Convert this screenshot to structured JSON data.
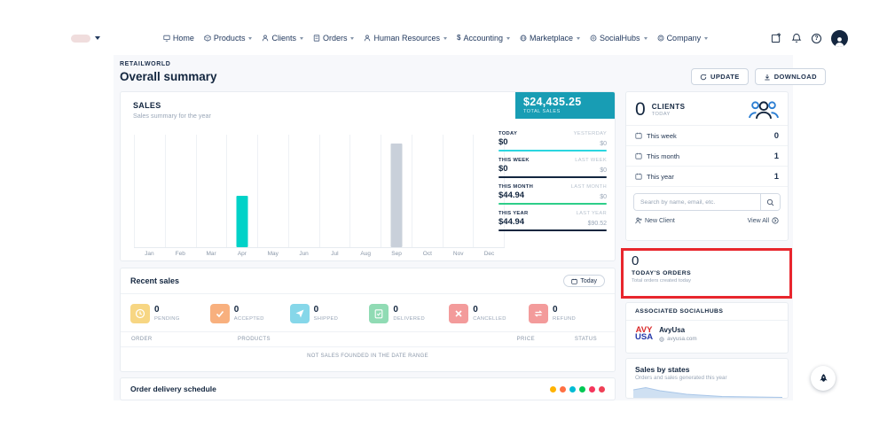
{
  "topbar": {
    "nav": [
      {
        "label": "Home"
      },
      {
        "label": "Products"
      },
      {
        "label": "Clients"
      },
      {
        "label": "Orders"
      },
      {
        "label": "Human Resources"
      },
      {
        "label": "Accounting",
        "icon_glyph": "$"
      },
      {
        "label": "Marketplace"
      },
      {
        "label": "SocialHubs"
      },
      {
        "label": "Company"
      }
    ],
    "icons": {
      "help_glyph": "?"
    }
  },
  "header": {
    "breadcrumb": "RETAILWORLD",
    "title": "Overall summary",
    "update_label": "UPDATE",
    "download_label": "DOWNLOAD"
  },
  "sales": {
    "title": "SALES",
    "subtitle": "Sales summary for the year",
    "badge": {
      "amount": "$24,435.25",
      "label": "TOTAL SALES"
    },
    "stats": [
      {
        "label": "TODAY",
        "value": "$0",
        "compare_label": "YESTERDAY",
        "compare_value": "$0",
        "accent": "#2bd6e0"
      },
      {
        "label": "THIS WEEK",
        "value": "$0",
        "compare_label": "LAST WEEK",
        "compare_value": "$0",
        "accent": "#13263f"
      },
      {
        "label": "THIS MONTH",
        "value": "$44.94",
        "compare_label": "LAST MONTH",
        "compare_value": "$0",
        "accent": "#2dce89"
      },
      {
        "label": "THIS YEAR",
        "value": "$44.94",
        "compare_label": "LAST YEAR",
        "compare_value": "$90.52",
        "accent": "#13263f"
      }
    ],
    "chart": {
      "type": "bar",
      "categories": [
        "Jan",
        "Feb",
        "Mar",
        "Apr",
        "May",
        "Jun",
        "Jul",
        "Aug",
        "Sep",
        "Oct",
        "Nov",
        "Dec"
      ],
      "values": [
        0,
        0,
        0,
        44.94,
        0,
        0,
        0,
        0,
        90.52,
        0,
        0,
        0
      ],
      "colors": [
        null,
        null,
        null,
        "#00d2c8",
        null,
        null,
        null,
        null,
        "#c9d0da",
        null,
        null,
        null
      ],
      "xlabel": "",
      "ylabel": "",
      "grid": true
    }
  },
  "recent_sales": {
    "title": "Recent sales",
    "filter_label": "Today",
    "tiles": [
      {
        "label": "PENDING",
        "count": "0",
        "color": "#f7d683",
        "icon": "clock-icon"
      },
      {
        "label": "ACCEPTED",
        "count": "0",
        "color": "#f8b07e",
        "icon": "check-icon"
      },
      {
        "label": "SHIPPED",
        "count": "0",
        "color": "#86d7e9",
        "icon": "send-icon"
      },
      {
        "label": "DELIVERED",
        "count": "0",
        "color": "#90dbb4",
        "icon": "clipboard-check-icon"
      },
      {
        "label": "CANCELLED",
        "count": "0",
        "color": "#f39b9b",
        "icon": "x-icon"
      },
      {
        "label": "REFUND",
        "count": "0",
        "color": "#f39b9b",
        "icon": "repeat-icon"
      }
    ],
    "table_headers": [
      "ORDER",
      "PRODUCTS",
      "PRICE",
      "STATUS"
    ],
    "empty_message": "NOT SALES FOUNDED IN THE DATE RANGE"
  },
  "delivery": {
    "title": "Order delivery schedule",
    "dot_colors": [
      "#ffb300",
      "#ff7043",
      "#00bcd4",
      "#00c853",
      "#f5365c",
      "#ef4056"
    ]
  },
  "clients": {
    "count": "0",
    "label": "CLIENTS",
    "sublabel": "TODAY",
    "rows": [
      {
        "label": "This week",
        "value": "0"
      },
      {
        "label": "This month",
        "value": "1"
      },
      {
        "label": "This year",
        "value": "1"
      }
    ],
    "search_placeholder": "Search by name, email, etc.",
    "new_client_label": "New Client",
    "view_all_label": "View All"
  },
  "orders_today": {
    "count": "0",
    "label": "TODAY'S ORDERS",
    "sublabel": "Total orders created today"
  },
  "socialhubs": {
    "header": "ASSOCIATED SOCIALHUBS",
    "logo_line1": "AVY",
    "logo_line2": "USA",
    "name": "AvyUsa",
    "domain": "avyusa.com"
  },
  "sales_by_states": {
    "title": "Sales by states",
    "subtitle": "Orders and sales generated this year"
  }
}
